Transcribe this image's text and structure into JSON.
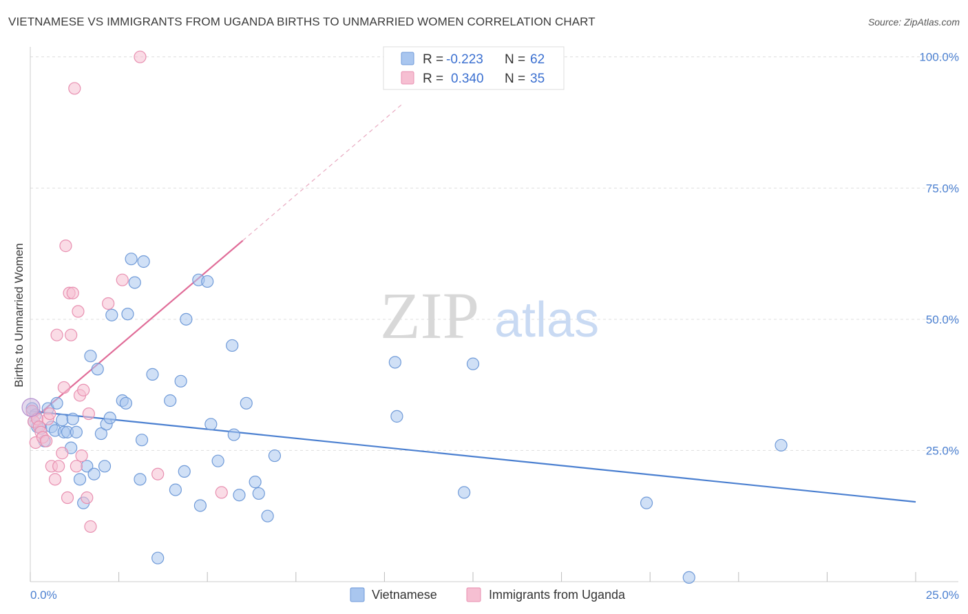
{
  "title": "VIETNAMESE VS IMMIGRANTS FROM UGANDA BIRTHS TO UNMARRIED WOMEN CORRELATION CHART",
  "source": "Source: ZipAtlas.com",
  "watermark": {
    "zip": "ZIP",
    "atlas": "atlas"
  },
  "colors": {
    "blue": "#4a7fd0",
    "blue_fill": "#a9c6ef",
    "pink": "#e06c98",
    "pink_fill": "#f6bfd2",
    "grid": "#dddddd"
  },
  "stats": {
    "r_label": "R =",
    "n_label": "N =",
    "rows": [
      {
        "r": "-0.223",
        "n": "62"
      },
      {
        "r": "0.340",
        "n": "35"
      }
    ]
  },
  "legend": {
    "items": [
      "Vietnamese",
      "Immigrants from Uganda"
    ]
  },
  "chart_data": {
    "type": "scatter",
    "title": "VIETNAMESE VS IMMIGRANTS FROM UGANDA BIRTHS TO UNMARRIED WOMEN CORRELATION CHART",
    "xlabel": "",
    "ylabel": "Births to Unmarried Women",
    "xlim": [
      0,
      25
    ],
    "ylim": [
      0,
      100
    ],
    "x_ticks": [
      "0.0%",
      "25.0%"
    ],
    "y_ticks": [
      "25.0%",
      "50.0%",
      "75.0%",
      "100.0%"
    ],
    "y_tick_values": [
      25,
      50,
      75,
      100
    ],
    "grid": true,
    "legend_position": "bottom-center",
    "series": [
      {
        "name": "Vietnamese",
        "color": "#4a7fd0",
        "trend": {
          "x0": 0.0,
          "y0": 32.5,
          "x1": 25.0,
          "y1": 15.2
        },
        "points": [
          [
            0.05,
            33.0
          ],
          [
            0.15,
            31.8
          ],
          [
            0.2,
            29.5
          ],
          [
            0.3,
            29.2
          ],
          [
            0.4,
            26.8
          ],
          [
            0.5,
            33.0
          ],
          [
            0.6,
            29.5
          ],
          [
            0.7,
            28.8
          ],
          [
            0.75,
            34.0
          ],
          [
            0.9,
            30.8
          ],
          [
            0.95,
            28.5
          ],
          [
            1.05,
            28.5
          ],
          [
            1.15,
            25.5
          ],
          [
            1.2,
            31.0
          ],
          [
            1.3,
            28.5
          ],
          [
            1.4,
            19.5
          ],
          [
            1.5,
            15.0
          ],
          [
            1.6,
            22.0
          ],
          [
            1.7,
            43.0
          ],
          [
            1.8,
            20.5
          ],
          [
            1.9,
            40.5
          ],
          [
            2.0,
            28.2
          ],
          [
            2.1,
            22.0
          ],
          [
            2.15,
            30.0
          ],
          [
            2.25,
            31.2
          ],
          [
            2.3,
            50.8
          ],
          [
            2.6,
            34.5
          ],
          [
            2.7,
            34.0
          ],
          [
            2.75,
            51.0
          ],
          [
            2.85,
            61.5
          ],
          [
            2.95,
            57.0
          ],
          [
            3.1,
            19.5
          ],
          [
            3.15,
            27.0
          ],
          [
            3.2,
            61.0
          ],
          [
            3.45,
            39.5
          ],
          [
            3.6,
            4.5
          ],
          [
            3.95,
            34.5
          ],
          [
            4.1,
            17.5
          ],
          [
            4.25,
            38.2
          ],
          [
            4.35,
            21.0
          ],
          [
            4.4,
            50.0
          ],
          [
            4.75,
            57.5
          ],
          [
            4.8,
            14.5
          ],
          [
            5.0,
            57.2
          ],
          [
            5.1,
            30.0
          ],
          [
            5.3,
            23.0
          ],
          [
            5.7,
            45.0
          ],
          [
            5.75,
            28.0
          ],
          [
            5.9,
            16.5
          ],
          [
            6.1,
            34.0
          ],
          [
            6.35,
            19.0
          ],
          [
            6.45,
            16.8
          ],
          [
            6.7,
            12.5
          ],
          [
            6.9,
            24.0
          ],
          [
            10.3,
            41.8
          ],
          [
            10.35,
            31.5
          ],
          [
            12.25,
            17.0
          ],
          [
            12.5,
            41.5
          ],
          [
            17.4,
            15.0
          ],
          [
            18.6,
            0.8
          ],
          [
            21.2,
            26.0
          ],
          [
            0.1,
            30.5
          ]
        ]
      },
      {
        "name": "Immigrants from Uganda",
        "color": "#e06c98",
        "trend": {
          "x0": 0.0,
          "y0": 30.5,
          "x1": 6.0,
          "y1": 65.0
        },
        "trend_dashed_to": {
          "x": 10.5,
          "y": 91.0
        },
        "points": [
          [
            0.05,
            32.5
          ],
          [
            0.1,
            30.5
          ],
          [
            0.15,
            26.5
          ],
          [
            0.2,
            31.0
          ],
          [
            0.25,
            29.5
          ],
          [
            0.3,
            28.5
          ],
          [
            0.35,
            27.5
          ],
          [
            0.45,
            26.8
          ],
          [
            0.5,
            31.0
          ],
          [
            0.55,
            32.0
          ],
          [
            0.6,
            22.0
          ],
          [
            0.7,
            19.5
          ],
          [
            0.75,
            47.0
          ],
          [
            0.8,
            22.0
          ],
          [
            0.9,
            24.5
          ],
          [
            0.95,
            37.0
          ],
          [
            1.0,
            64.0
          ],
          [
            1.05,
            16.0
          ],
          [
            1.1,
            55.0
          ],
          [
            1.15,
            47.0
          ],
          [
            1.2,
            55.0
          ],
          [
            1.25,
            94.0
          ],
          [
            1.3,
            22.0
          ],
          [
            1.35,
            51.5
          ],
          [
            1.4,
            35.5
          ],
          [
            1.45,
            24.0
          ],
          [
            1.5,
            36.5
          ],
          [
            1.6,
            16.0
          ],
          [
            1.65,
            32.0
          ],
          [
            1.7,
            10.5
          ],
          [
            2.2,
            53.0
          ],
          [
            2.6,
            57.5
          ],
          [
            3.1,
            100.0
          ],
          [
            3.6,
            20.5
          ],
          [
            5.4,
            17.0
          ]
        ]
      }
    ]
  }
}
